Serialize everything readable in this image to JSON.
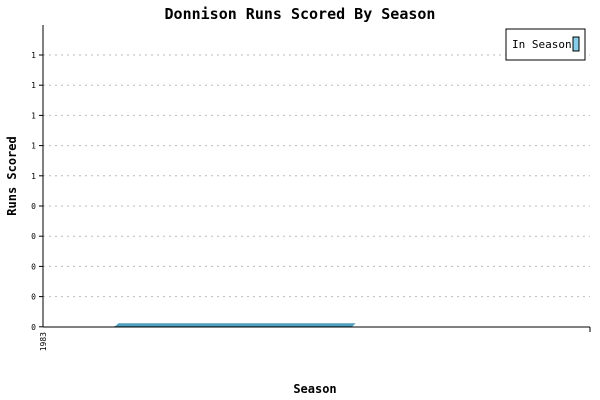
{
  "chart_data": {
    "type": "area",
    "title": "Donnison Runs Scored By Season",
    "xlabel": "Season",
    "ylabel": "Runs Scored",
    "x": [
      "1983"
    ],
    "xlim": [
      1982.85,
      1984.0
    ],
    "ylim": [
      0,
      1
    ],
    "y_tick_labels": [
      "0",
      "0",
      "0",
      "0",
      "0",
      "1",
      "1",
      "1",
      "1",
      "1"
    ],
    "grid": true,
    "legend_position": "top-right",
    "series": [
      {
        "name": "In Season",
        "values": [
          0
        ],
        "color": "#4fa0be"
      }
    ]
  }
}
